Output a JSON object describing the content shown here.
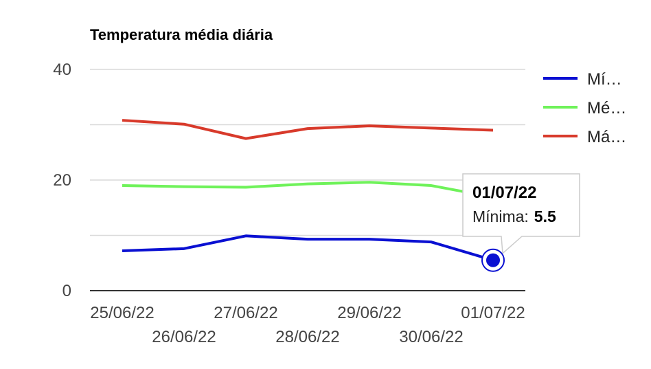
{
  "chart_data": {
    "type": "line",
    "title": "Temperatura média diária",
    "x": [
      "25/06/22",
      "26/06/22",
      "27/06/22",
      "28/06/22",
      "29/06/22",
      "30/06/22",
      "01/07/22"
    ],
    "ylim": [
      0,
      40
    ],
    "yticks": [
      0,
      20,
      40
    ],
    "y_gridlines": [
      0,
      10,
      20,
      30,
      40
    ],
    "grid": true,
    "legend_position": "right",
    "series": [
      {
        "name": "Mí…",
        "color": "#0a10d2",
        "values": [
          7.2,
          7.6,
          9.9,
          9.3,
          9.3,
          8.8,
          5.5
        ]
      },
      {
        "name": "Mé…",
        "color": "#6ff25a",
        "values": [
          19.0,
          18.8,
          18.7,
          19.3,
          19.6,
          19.0,
          16.9
        ]
      },
      {
        "name": "Má…",
        "color": "#d83a2b",
        "values": [
          30.8,
          30.1,
          27.5,
          29.3,
          29.8,
          29.4,
          29.0
        ]
      }
    ],
    "tooltip": {
      "title": "01/07/22",
      "label": "Mínima:",
      "value": "5.5",
      "series_index": 0,
      "point_index": 6
    }
  }
}
